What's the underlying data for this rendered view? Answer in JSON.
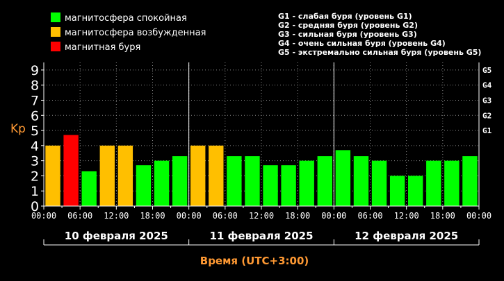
{
  "legend": [
    {
      "label": "магнитосфера спокойная",
      "color": "#00ff00"
    },
    {
      "label": "магнитосфера возбужденная",
      "color": "#ffbf00"
    },
    {
      "label": "магнитная буря",
      "color": "#ff0000"
    }
  ],
  "storm_levels_legend": [
    "G1 - слабая буря (уровень G1)",
    "G2 - средняя буря (уровень G2)",
    "G3 - сильная буря (уровень G3)",
    "G4 - очень сильная буря (уровень G4)",
    "G5 - экстремально сильная буря (уровень G5)"
  ],
  "chart_data": {
    "type": "bar",
    "ylabel": "Kp",
    "xlabel": "Время (UTC+3:00)",
    "ylim": [
      0,
      9.5
    ],
    "y_ticks": [
      "0",
      "1",
      "2",
      "3",
      "4",
      "5",
      "6",
      "7",
      "8",
      "9"
    ],
    "right_ticks": [
      {
        "label": "G1",
        "value": 5
      },
      {
        "label": "G2",
        "value": 6
      },
      {
        "label": "G3",
        "value": 7
      },
      {
        "label": "G4",
        "value": 8
      },
      {
        "label": "G5",
        "value": 9
      }
    ],
    "x_tick_labels": [
      "00:00",
      "06:00",
      "12:00",
      "18:00",
      "00:00",
      "06:00",
      "12:00",
      "18:00",
      "00:00",
      "06:00",
      "12:00",
      "18:00",
      "00:00"
    ],
    "days": [
      "10 февраля 2025",
      "11 февраля 2025",
      "12 февраля 2025"
    ],
    "values": [
      4.0,
      4.7,
      2.3,
      4.0,
      4.0,
      2.7,
      3.0,
      3.3,
      4.0,
      4.0,
      3.3,
      3.3,
      2.7,
      2.7,
      3.0,
      3.3,
      3.7,
      3.3,
      3.0,
      2.0,
      2.0,
      3.0,
      3.0,
      3.3
    ],
    "colors": {
      "quiet": "#00ff00",
      "active": "#ffbf00",
      "storm": "#ff0000"
    },
    "grid": "dotted"
  }
}
